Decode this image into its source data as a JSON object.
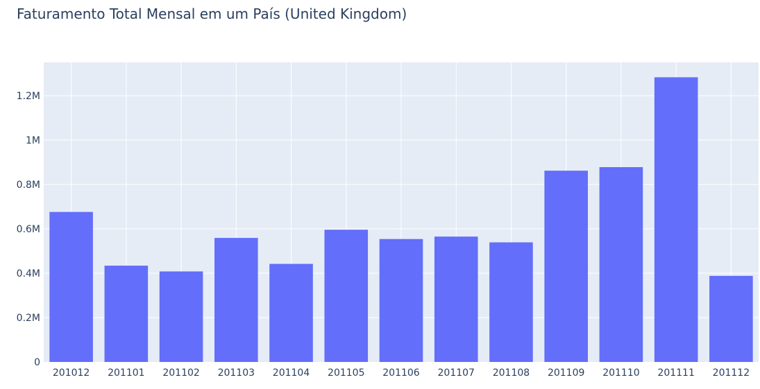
{
  "chart_data": {
    "type": "bar",
    "title": "Faturamento Total Mensal em um País (United Kingdom)",
    "xlabel": "",
    "ylabel": "",
    "categories": [
      "201012",
      "201101",
      "201102",
      "201103",
      "201104",
      "201105",
      "201106",
      "201107",
      "201108",
      "201109",
      "201110",
      "201111",
      "201112"
    ],
    "values": [
      676000,
      434000,
      408000,
      559000,
      442000,
      596000,
      554000,
      565000,
      539000,
      862000,
      878000,
      1283000,
      388000
    ],
    "ylim": [
      0,
      1350000
    ],
    "y_ticks": [
      0,
      200000,
      400000,
      600000,
      800000,
      1000000,
      1200000
    ],
    "y_tick_labels": [
      "0",
      "0.2M",
      "0.4M",
      "0.6M",
      "0.8M",
      "1M",
      "1.2M"
    ],
    "grid": true,
    "bar_color": "#636efa",
    "plot_background": "#e5ecf6",
    "grid_color": "#ffffff",
    "text_color": "#2a3f5f"
  }
}
